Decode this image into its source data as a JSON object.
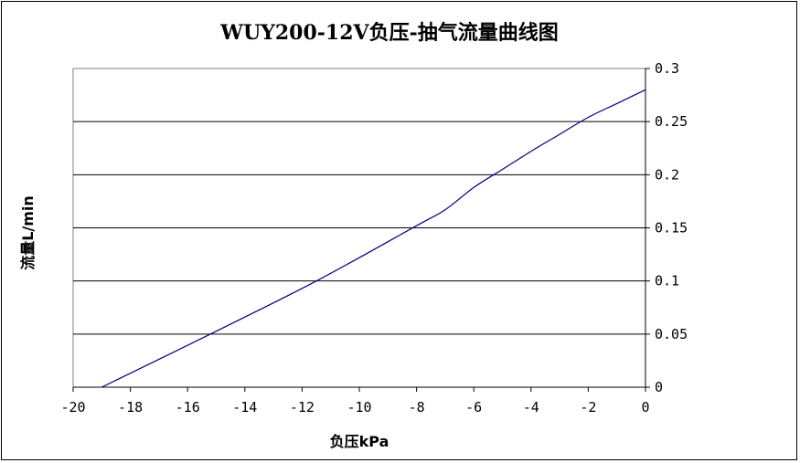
{
  "chart_data": {
    "type": "line",
    "title": "WUY200-12V负压-抽气流量曲线图",
    "xlabel": "负压kPa",
    "ylabel": "流量L/min",
    "xlim": [
      -20,
      0
    ],
    "ylim": [
      0,
      0.3
    ],
    "x_ticks": [
      "-20",
      "-18",
      "-16",
      "-14",
      "-12",
      "-10",
      "-8",
      "-6",
      "-4",
      "-2",
      "0"
    ],
    "y_ticks": [
      "0",
      "0.05",
      "0.1",
      "0.15",
      "0.2",
      "0.25",
      "0.3"
    ],
    "grid": "horizontal",
    "y_axis_side": "right",
    "line_color": "#000080",
    "series": [
      {
        "x": [
          -19.0,
          -15.2,
          -11.5,
          -8.0,
          -7.0,
          -6.0,
          -5.0,
          -4.0,
          -3.0,
          -2.0,
          -1.0,
          0.0
        ],
        "y": [
          0.0,
          0.05,
          0.1,
          0.152,
          0.167,
          0.188,
          0.205,
          0.222,
          0.238,
          0.254,
          0.267,
          0.28
        ]
      }
    ]
  }
}
